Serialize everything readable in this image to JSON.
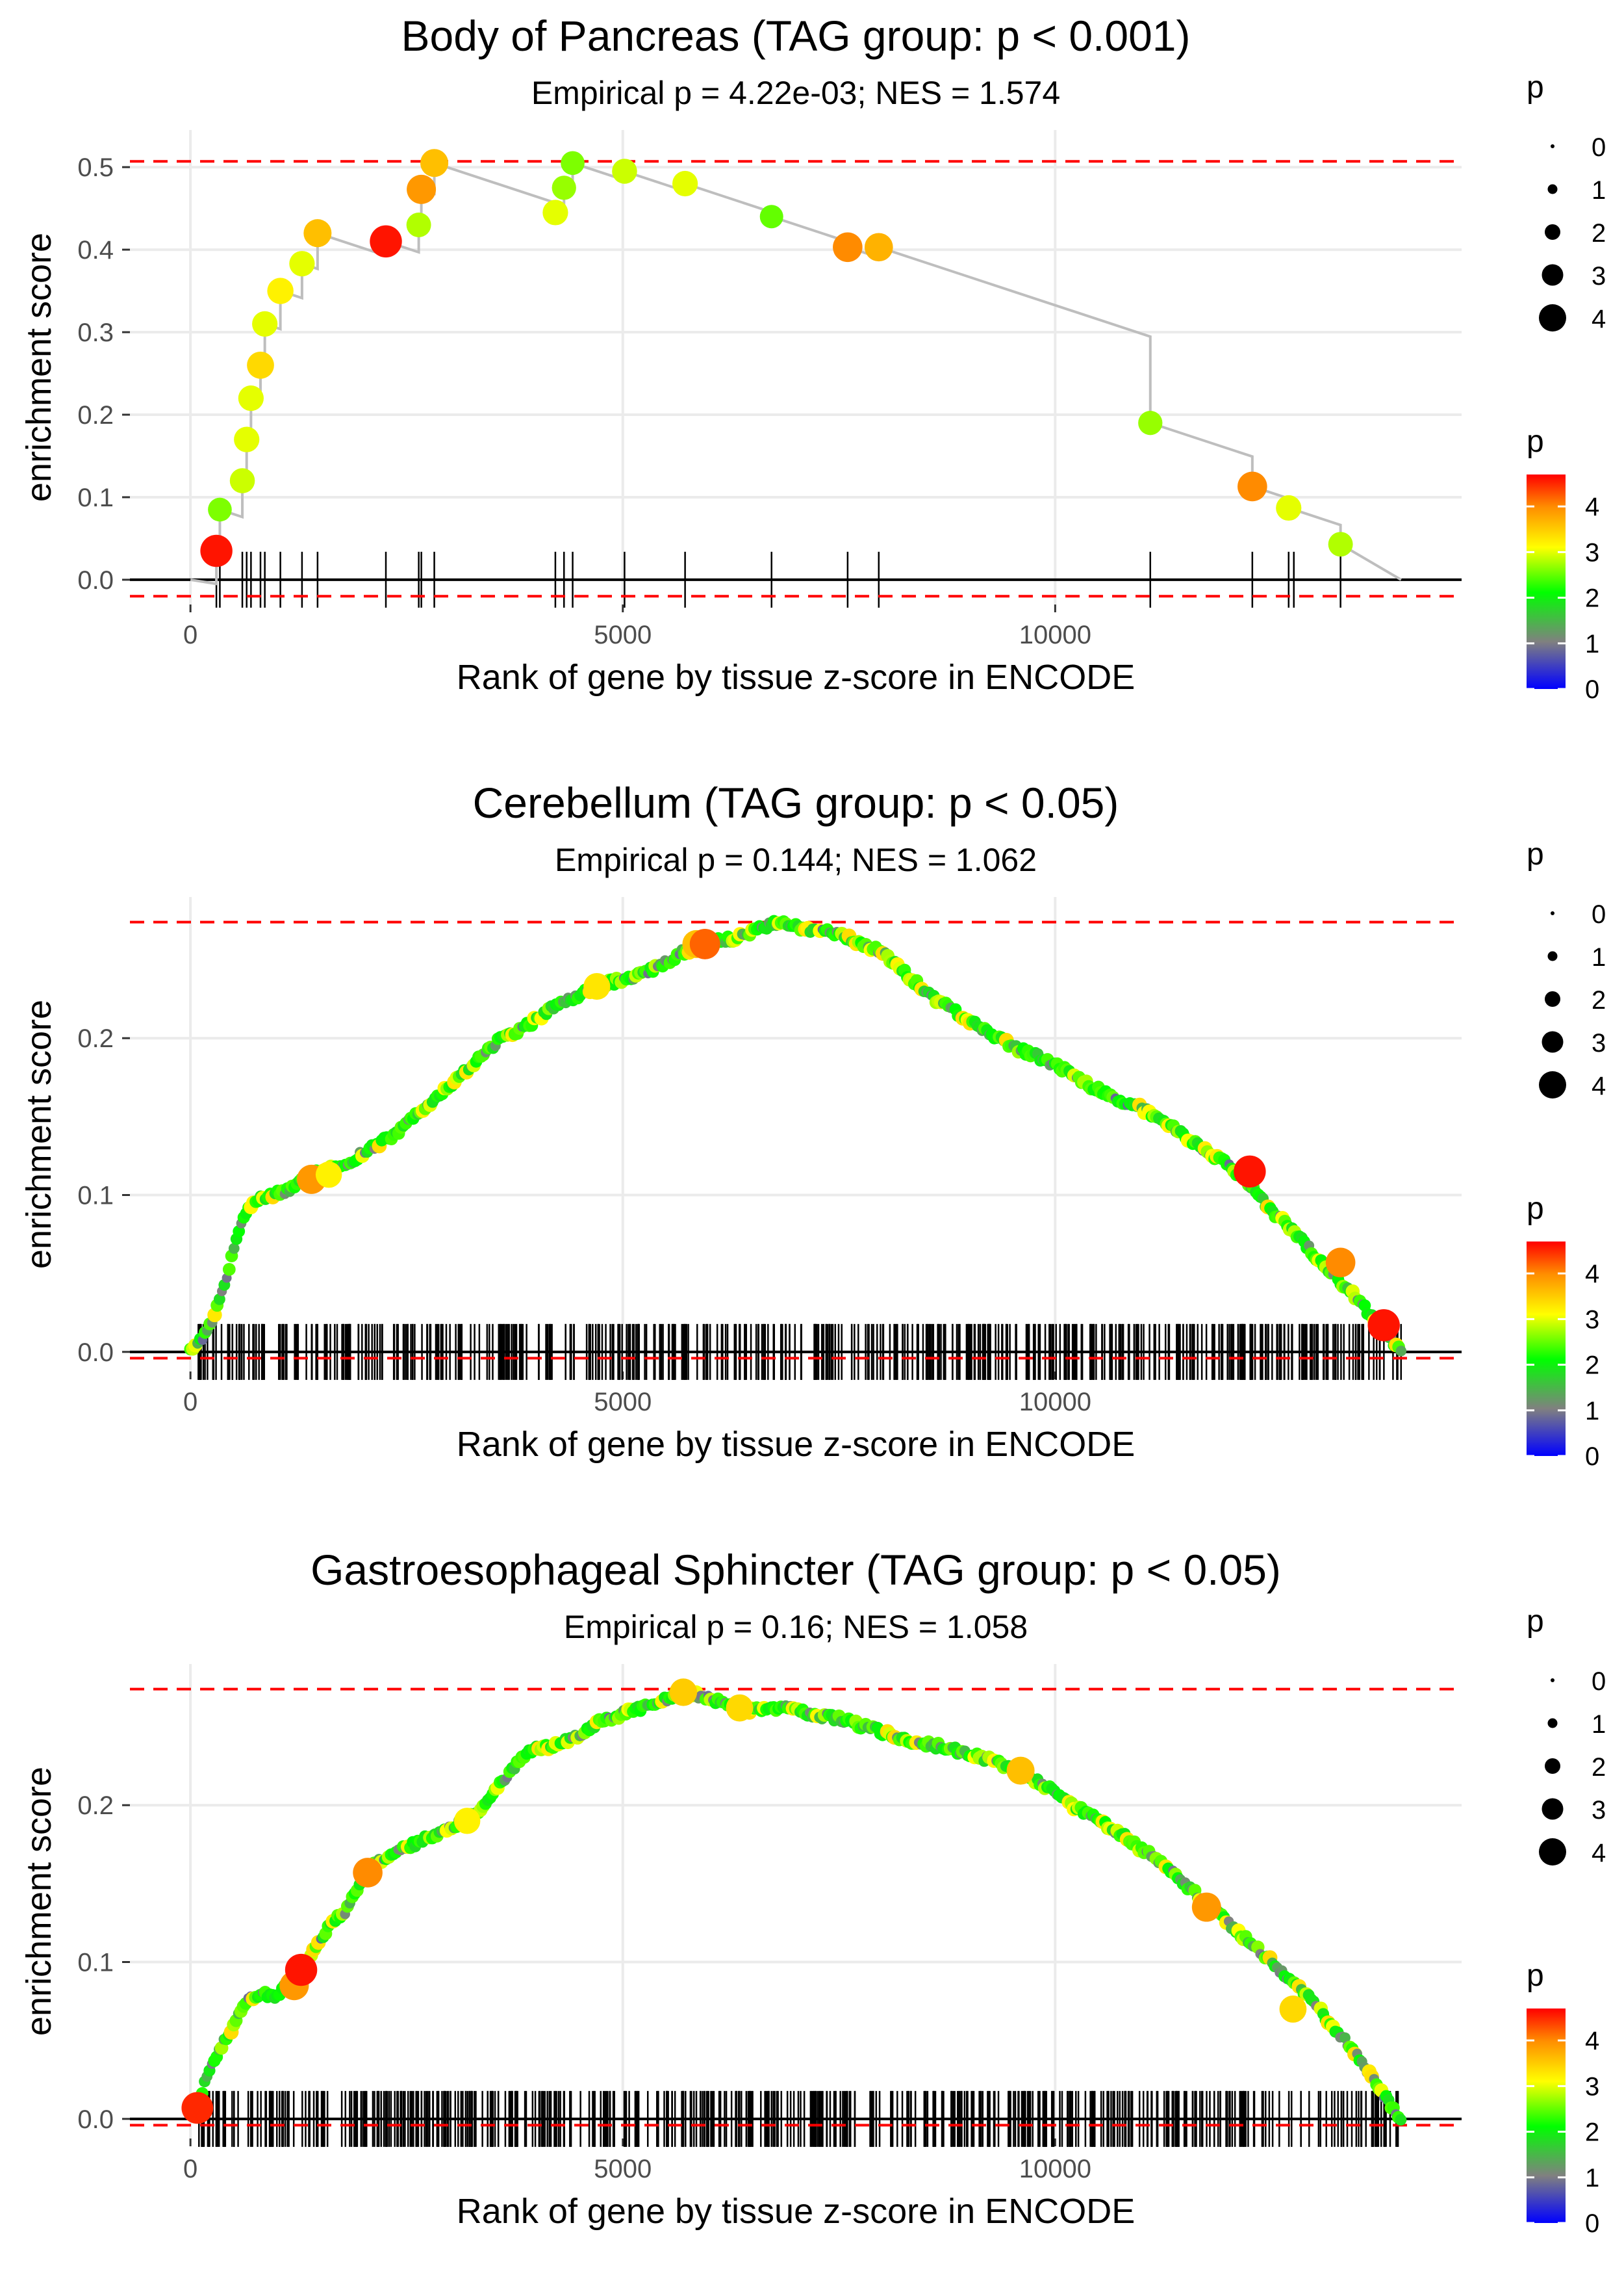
{
  "colors": {
    "dashed_line": "#ff0000",
    "curve_line": "#bebebe",
    "axis_line": "#000000",
    "gridline": "#ebebeb",
    "tick_label": "#4d4d4d",
    "text": "#000000",
    "gradient_stops": [
      "#0000ff",
      "#808080",
      "#00ff00",
      "#ffff00",
      "#ff8c00",
      "#ff0000"
    ]
  },
  "chart_data": [
    {
      "type": "line",
      "title": "Body of Pancreas (TAG group: p < 0.001)",
      "subtitle": "Empirical p = 4.22e-03; NES = 1.574",
      "xlabel": "Rank of gene by tissue z-score in ENCODE",
      "ylabel": "enrichment score",
      "xlim": [
        -700,
        14700
      ],
      "ylim": [
        -0.03,
        0.545
      ],
      "xticks": [
        0,
        5000,
        10000
      ],
      "xtick_labels": [
        "0",
        "5000",
        "10000"
      ],
      "yticks": [
        0,
        0.1,
        0.2,
        0.3,
        0.4,
        0.5
      ],
      "ytick_labels": [
        "0.0",
        "0.1",
        "0.2",
        "0.3",
        "0.4",
        "0.5"
      ],
      "max_es": 0.507,
      "min_es": -0.02,
      "mode": "sparse",
      "curve_end": 14000,
      "hits": [
        {
          "x": 300,
          "es": 0.035,
          "p": 4.6
        },
        {
          "x": 340,
          "es": 0.085,
          "p": 2.6
        },
        {
          "x": 600,
          "es": 0.12,
          "p": 2.9
        },
        {
          "x": 650,
          "es": 0.17,
          "p": 3.0
        },
        {
          "x": 700,
          "es": 0.22,
          "p": 3.0
        },
        {
          "x": 810,
          "es": 0.26,
          "p": 3.4
        },
        {
          "x": 860,
          "es": 0.31,
          "p": 3.0
        },
        {
          "x": 1040,
          "es": 0.35,
          "p": 3.2
        },
        {
          "x": 1290,
          "es": 0.383,
          "p": 3.0
        },
        {
          "x": 1470,
          "es": 0.42,
          "p": 3.6
        },
        {
          "x": 2260,
          "es": 0.41,
          "p": 4.6
        },
        {
          "x": 2640,
          "es": 0.43,
          "p": 2.8
        },
        {
          "x": 2670,
          "es": 0.473,
          "p": 3.9
        },
        {
          "x": 2820,
          "es": 0.505,
          "p": 3.6
        },
        {
          "x": 4220,
          "es": 0.445,
          "p": 3.0
        },
        {
          "x": 4320,
          "es": 0.475,
          "p": 2.7
        },
        {
          "x": 4420,
          "es": 0.505,
          "p": 2.6
        },
        {
          "x": 5020,
          "es": 0.495,
          "p": 2.9
        },
        {
          "x": 5720,
          "es": 0.48,
          "p": 3.0
        },
        {
          "x": 6720,
          "es": 0.44,
          "p": 2.5
        },
        {
          "x": 7600,
          "es": 0.403,
          "p": 4.0
        },
        {
          "x": 7960,
          "es": 0.403,
          "p": 3.7
        },
        {
          "x": 11100,
          "es": 0.19,
          "p": 2.7
        },
        {
          "x": 12280,
          "es": 0.113,
          "p": 4.0
        },
        {
          "x": 12700,
          "es": 0.087,
          "p": 3.0
        },
        {
          "x": 13300,
          "es": 0.043,
          "p": 2.8
        }
      ],
      "ticks": [
        300,
        340,
        600,
        650,
        700,
        810,
        860,
        1040,
        1290,
        1470,
        2260,
        2640,
        2670,
        2820,
        4220,
        4320,
        4420,
        5020,
        5720,
        6720,
        7600,
        7960,
        11100,
        12280,
        12700,
        12760,
        13300
      ],
      "legend_size": {
        "title": "p",
        "labels": [
          "0",
          "1",
          "2",
          "3",
          "4"
        ]
      },
      "legend_color": {
        "title": "p",
        "labels": [
          "4",
          "3",
          "2",
          "1",
          "0"
        ],
        "max_p": 4.7
      }
    },
    {
      "type": "line",
      "title": "Cerebellum (TAG group: p < 0.05)",
      "subtitle": "Empirical p = 0.144; NES = 1.062",
      "xlabel": "Rank of gene by tissue z-score in ENCODE",
      "ylabel": "enrichment score",
      "xlim": [
        -700,
        14700
      ],
      "ylim": [
        -0.0125,
        0.29
      ],
      "xticks": [
        0,
        5000,
        10000
      ],
      "xtick_labels": [
        "0",
        "5000",
        "10000"
      ],
      "yticks": [
        0,
        0.1,
        0.2
      ],
      "ytick_labels": [
        "0.0",
        "0.1",
        "0.2"
      ],
      "max_es": 0.274,
      "min_es": -0.004,
      "mode": "dense",
      "curve": [
        [
          0,
          0
        ],
        [
          150,
          0.01
        ],
        [
          250,
          0.02
        ],
        [
          380,
          0.04
        ],
        [
          520,
          0.07
        ],
        [
          650,
          0.09
        ],
        [
          800,
          0.097
        ],
        [
          950,
          0.1
        ],
        [
          1150,
          0.103
        ],
        [
          1350,
          0.112
        ],
        [
          1550,
          0.115
        ],
        [
          1800,
          0.12
        ],
        [
          2100,
          0.13
        ],
        [
          2400,
          0.14
        ],
        [
          2700,
          0.156
        ],
        [
          3000,
          0.17
        ],
        [
          3300,
          0.185
        ],
        [
          3600,
          0.2
        ],
        [
          3900,
          0.208
        ],
        [
          4200,
          0.22
        ],
        [
          4500,
          0.228
        ],
        [
          4800,
          0.235
        ],
        [
          5100,
          0.238
        ],
        [
          5400,
          0.245
        ],
        [
          5700,
          0.255
        ],
        [
          6000,
          0.262
        ],
        [
          6300,
          0.263
        ],
        [
          6600,
          0.27
        ],
        [
          6800,
          0.274
        ],
        [
          7100,
          0.27
        ],
        [
          7400,
          0.267
        ],
        [
          7700,
          0.262
        ],
        [
          8000,
          0.255
        ],
        [
          8300,
          0.24
        ],
        [
          8600,
          0.225
        ],
        [
          8900,
          0.215
        ],
        [
          9200,
          0.205
        ],
        [
          9500,
          0.195
        ],
        [
          9800,
          0.188
        ],
        [
          10100,
          0.18
        ],
        [
          10400,
          0.17
        ],
        [
          10700,
          0.162
        ],
        [
          11000,
          0.155
        ],
        [
          11300,
          0.145
        ],
        [
          11600,
          0.133
        ],
        [
          11900,
          0.123
        ],
        [
          12200,
          0.11
        ],
        [
          12500,
          0.09
        ],
        [
          12800,
          0.075
        ],
        [
          13100,
          0.055
        ],
        [
          13400,
          0.04
        ],
        [
          13700,
          0.02
        ],
        [
          14000,
          0.0
        ]
      ],
      "hits": [
        {
          "x": 1400,
          "es": 0.11,
          "p": 3.9
        },
        {
          "x": 1600,
          "es": 0.113,
          "p": 3.2
        },
        {
          "x": 4700,
          "es": 0.233,
          "p": 3.3
        },
        {
          "x": 5850,
          "es": 0.26,
          "p": 3.6
        },
        {
          "x": 5950,
          "es": 0.26,
          "p": 4.2
        },
        {
          "x": 12250,
          "es": 0.115,
          "p": 4.6
        },
        {
          "x": 13300,
          "es": 0.057,
          "p": 4.0
        },
        {
          "x": 13800,
          "es": 0.017,
          "p": 4.6
        }
      ],
      "tick_range": [
        80,
        14000
      ],
      "tick_count": 520,
      "legend_size": {
        "title": "p",
        "labels": [
          "0",
          "1",
          "2",
          "3",
          "4"
        ]
      },
      "legend_color": {
        "title": "p",
        "labels": [
          "4",
          "3",
          "2",
          "1",
          "0"
        ],
        "max_p": 4.7
      }
    },
    {
      "type": "line",
      "title": "Gastroesophageal Sphincter (TAG group: p < 0.05)",
      "subtitle": "Empirical p = 0.16; NES = 1.058",
      "xlabel": "Rank of gene by tissue z-score in ENCODE",
      "ylabel": "enrichment score",
      "xlim": [
        -700,
        14700
      ],
      "ylim": [
        -0.0125,
        0.29
      ],
      "xticks": [
        0,
        5000,
        10000
      ],
      "xtick_labels": [
        "0",
        "5000",
        "10000"
      ],
      "yticks": [
        0,
        0.1,
        0.2
      ],
      "ytick_labels": [
        "0.0",
        "0.1",
        "0.2"
      ],
      "max_es": 0.274,
      "min_es": -0.004,
      "mode": "dense",
      "curve": [
        [
          80,
          0.007
        ],
        [
          200,
          0.03
        ],
        [
          350,
          0.045
        ],
        [
          500,
          0.06
        ],
        [
          650,
          0.075
        ],
        [
          800,
          0.08
        ],
        [
          1000,
          0.078
        ],
        [
          1200,
          0.09
        ],
        [
          1350,
          0.1
        ],
        [
          1500,
          0.115
        ],
        [
          1650,
          0.125
        ],
        [
          1800,
          0.133
        ],
        [
          2000,
          0.155
        ],
        [
          2200,
          0.165
        ],
        [
          2400,
          0.17
        ],
        [
          2700,
          0.178
        ],
        [
          3000,
          0.185
        ],
        [
          3300,
          0.195
        ],
        [
          3600,
          0.215
        ],
        [
          3900,
          0.235
        ],
        [
          4200,
          0.238
        ],
        [
          4500,
          0.245
        ],
        [
          4800,
          0.255
        ],
        [
          5100,
          0.26
        ],
        [
          5400,
          0.265
        ],
        [
          5700,
          0.272
        ],
        [
          6000,
          0.268
        ],
        [
          6300,
          0.262
        ],
        [
          6600,
          0.26
        ],
        [
          6900,
          0.262
        ],
        [
          7200,
          0.258
        ],
        [
          7500,
          0.255
        ],
        [
          7800,
          0.25
        ],
        [
          8100,
          0.245
        ],
        [
          8400,
          0.24
        ],
        [
          8700,
          0.237
        ],
        [
          9000,
          0.233
        ],
        [
          9300,
          0.228
        ],
        [
          9600,
          0.222
        ],
        [
          9900,
          0.212
        ],
        [
          10200,
          0.2
        ],
        [
          10500,
          0.19
        ],
        [
          10800,
          0.18
        ],
        [
          11100,
          0.168
        ],
        [
          11400,
          0.155
        ],
        [
          11700,
          0.14
        ],
        [
          12000,
          0.125
        ],
        [
          12300,
          0.11
        ],
        [
          12600,
          0.095
        ],
        [
          12900,
          0.08
        ],
        [
          13200,
          0.06
        ],
        [
          13500,
          0.04
        ],
        [
          13800,
          0.015
        ],
        [
          14000,
          0.0
        ]
      ],
      "hits": [
        {
          "x": 80,
          "es": 0.007,
          "p": 4.5
        },
        {
          "x": 1200,
          "es": 0.085,
          "p": 3.9
        },
        {
          "x": 1280,
          "es": 0.095,
          "p": 4.6
        },
        {
          "x": 2050,
          "es": 0.157,
          "p": 4.0
        },
        {
          "x": 3200,
          "es": 0.19,
          "p": 3.2
        },
        {
          "x": 5700,
          "es": 0.272,
          "p": 3.5
        },
        {
          "x": 6350,
          "es": 0.262,
          "p": 3.4
        },
        {
          "x": 9600,
          "es": 0.222,
          "p": 3.6
        },
        {
          "x": 11750,
          "es": 0.135,
          "p": 3.9
        },
        {
          "x": 12750,
          "es": 0.07,
          "p": 3.4
        }
      ],
      "tick_range": [
        80,
        14000
      ],
      "tick_count": 520,
      "legend_size": {
        "title": "p",
        "labels": [
          "0",
          "1",
          "2",
          "3",
          "4"
        ]
      },
      "legend_color": {
        "title": "p",
        "labels": [
          "4",
          "3",
          "2",
          "1",
          "0"
        ],
        "max_p": 4.7
      }
    }
  ]
}
